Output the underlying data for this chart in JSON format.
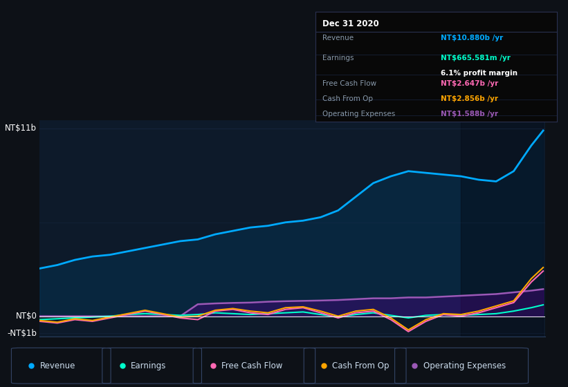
{
  "bg_color": "#0d1117",
  "plot_bg_color": "#0d1a2a",
  "grid_color": "#1e3050",
  "title_date": "Dec 31 2020",
  "tooltip": {
    "Revenue": {
      "value": "NT$10.880b /yr",
      "color": "#00aaff"
    },
    "Earnings": {
      "value": "NT$665.581m /yr",
      "color": "#00ffcc"
    },
    "profit_margin": "6.1% profit margin",
    "Free Cash Flow": {
      "value": "NT$2.647b /yr",
      "color": "#ff69b4"
    },
    "Cash From Op": {
      "value": "NT$2.856b /yr",
      "color": "#ffa500"
    },
    "Operating Expenses": {
      "value": "NT$1.588b /yr",
      "color": "#9b59b6"
    }
  },
  "y_label_top": "NT$11b",
  "y_label_zero": "NT$0",
  "y_label_neg": "-NT$1b",
  "ylim": [
    -1.2,
    11.5
  ],
  "legend": [
    {
      "label": "Revenue",
      "color": "#00aaff"
    },
    {
      "label": "Earnings",
      "color": "#00ffcc"
    },
    {
      "label": "Free Cash Flow",
      "color": "#ff69b4"
    },
    {
      "label": "Cash From Op",
      "color": "#ffa500"
    },
    {
      "label": "Operating Expenses",
      "color": "#9b59b6"
    }
  ],
  "revenue": {
    "x": [
      2013.75,
      2014.0,
      2014.25,
      2014.5,
      2014.75,
      2015.0,
      2015.25,
      2015.5,
      2015.75,
      2016.0,
      2016.25,
      2016.5,
      2016.75,
      2017.0,
      2017.25,
      2017.5,
      2017.75,
      2018.0,
      2018.25,
      2018.5,
      2018.75,
      2019.0,
      2019.25,
      2019.5,
      2019.75,
      2020.0,
      2020.25,
      2020.5,
      2020.75,
      2020.92
    ],
    "y": [
      2.8,
      3.0,
      3.3,
      3.5,
      3.6,
      3.8,
      4.0,
      4.2,
      4.4,
      4.5,
      4.8,
      5.0,
      5.2,
      5.3,
      5.5,
      5.6,
      5.8,
      6.2,
      7.0,
      7.8,
      8.2,
      8.5,
      8.4,
      8.3,
      8.2,
      8.0,
      7.9,
      8.5,
      10.0,
      10.88
    ]
  },
  "earnings": {
    "x": [
      2013.75,
      2014.0,
      2014.25,
      2014.5,
      2014.75,
      2015.0,
      2015.25,
      2015.5,
      2015.75,
      2016.0,
      2016.25,
      2016.5,
      2016.75,
      2017.0,
      2017.25,
      2017.5,
      2017.75,
      2018.0,
      2018.25,
      2018.5,
      2018.75,
      2019.0,
      2019.25,
      2019.5,
      2019.75,
      2020.0,
      2020.25,
      2020.5,
      2020.75,
      2020.92
    ],
    "y": [
      -0.2,
      -0.15,
      -0.1,
      -0.05,
      0.0,
      0.1,
      0.15,
      0.1,
      0.05,
      0.1,
      0.2,
      0.15,
      0.1,
      0.15,
      0.2,
      0.25,
      0.1,
      -0.05,
      0.1,
      0.2,
      0.05,
      -0.1,
      0.05,
      0.1,
      0.05,
      0.1,
      0.15,
      0.3,
      0.5,
      0.666
    ]
  },
  "free_cash_flow": {
    "x": [
      2013.75,
      2014.0,
      2014.25,
      2014.5,
      2014.75,
      2015.0,
      2015.25,
      2015.5,
      2015.75,
      2016.0,
      2016.25,
      2016.5,
      2016.75,
      2017.0,
      2017.25,
      2017.5,
      2017.75,
      2018.0,
      2018.25,
      2018.5,
      2018.75,
      2019.0,
      2019.25,
      2019.5,
      2019.75,
      2020.0,
      2020.25,
      2020.5,
      2020.75,
      2020.92
    ],
    "y": [
      -0.3,
      -0.4,
      -0.2,
      -0.3,
      -0.1,
      0.1,
      0.3,
      0.1,
      -0.1,
      -0.2,
      0.3,
      0.4,
      0.2,
      0.1,
      0.4,
      0.5,
      0.2,
      -0.1,
      0.2,
      0.3,
      -0.2,
      -0.9,
      -0.3,
      0.1,
      0.0,
      0.2,
      0.5,
      0.8,
      2.0,
      2.647
    ]
  },
  "cash_from_op": {
    "x": [
      2013.75,
      2014.0,
      2014.25,
      2014.5,
      2014.75,
      2015.0,
      2015.25,
      2015.5,
      2015.75,
      2016.0,
      2016.25,
      2016.5,
      2016.75,
      2017.0,
      2017.25,
      2017.5,
      2017.75,
      2018.0,
      2018.25,
      2018.5,
      2018.75,
      2019.0,
      2019.25,
      2019.5,
      2019.75,
      2020.0,
      2020.25,
      2020.5,
      2020.75,
      2020.92
    ],
    "y": [
      -0.25,
      -0.35,
      -0.15,
      -0.25,
      -0.05,
      0.15,
      0.35,
      0.15,
      -0.05,
      0.0,
      0.35,
      0.45,
      0.3,
      0.2,
      0.5,
      0.55,
      0.3,
      0.0,
      0.3,
      0.4,
      -0.1,
      -0.8,
      -0.2,
      0.15,
      0.1,
      0.3,
      0.6,
      0.9,
      2.2,
      2.856
    ]
  },
  "operating_expenses": {
    "x": [
      2013.75,
      2014.0,
      2014.25,
      2014.5,
      2014.75,
      2015.0,
      2015.25,
      2015.5,
      2015.75,
      2016.0,
      2016.25,
      2016.5,
      2016.75,
      2017.0,
      2017.25,
      2017.5,
      2017.75,
      2018.0,
      2018.25,
      2018.5,
      2018.75,
      2019.0,
      2019.25,
      2019.5,
      2019.75,
      2020.0,
      2020.25,
      2020.5,
      2020.75,
      2020.92
    ],
    "y": [
      0.0,
      0.0,
      0.0,
      0.0,
      0.0,
      0.0,
      0.0,
      0.0,
      0.0,
      0.7,
      0.75,
      0.78,
      0.8,
      0.85,
      0.88,
      0.9,
      0.92,
      0.95,
      1.0,
      1.05,
      1.05,
      1.1,
      1.1,
      1.15,
      1.2,
      1.25,
      1.3,
      1.4,
      1.5,
      1.588
    ]
  },
  "highlight_x_start": 2019.75,
  "highlight_x_end": 2020.92,
  "xlim": [
    2013.75,
    2020.95
  ]
}
